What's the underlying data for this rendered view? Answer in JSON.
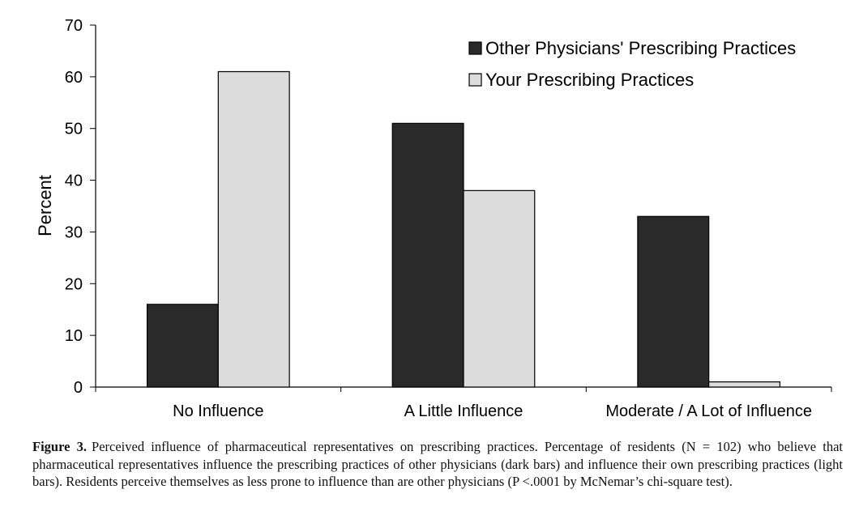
{
  "chart_data": {
    "type": "bar",
    "ylabel": "Percent",
    "ylim": [
      0,
      70
    ],
    "yticks": [
      0,
      10,
      20,
      30,
      40,
      50,
      60,
      70
    ],
    "categories": [
      "No Influence",
      "A Little Influence",
      "Moderate / A Lot of Influence"
    ],
    "series": [
      {
        "name": "Other Physicians' Prescribing Practices",
        "color": "#2a2a2a",
        "values": [
          16,
          51,
          33
        ]
      },
      {
        "name": "Your Prescribing Practices",
        "color": "#dcdcdc",
        "values": [
          61,
          38,
          1
        ]
      }
    ],
    "legend_position": "top-right",
    "grid": false
  },
  "caption": {
    "label": "Figure 3.",
    "text": "Perceived influence of pharmaceutical representatives on prescribing practices. Percentage of residents (N = 102) who believe that pharmaceutical representatives influence the prescribing practices of other physicians (dark bars) and influence their own prescribing practices (light bars). Residents perceive themselves as less prone to influence than are other physicians (P <.0001 by McNemar’s chi-square test)."
  }
}
